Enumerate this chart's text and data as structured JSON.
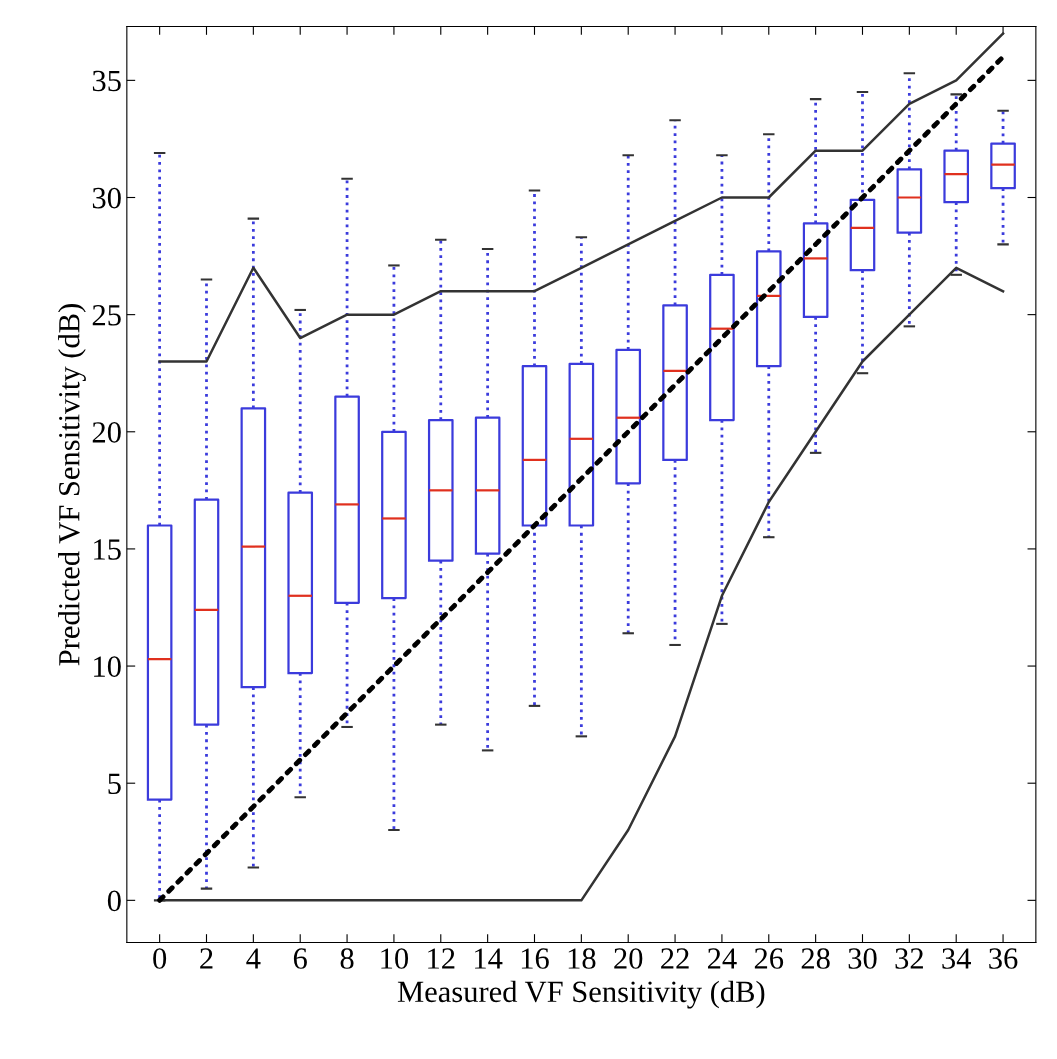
{
  "chart_data": {
    "type": "box",
    "xlabel": "Measured VF Sensitivity (dB)",
    "ylabel": "Predicted VF Sensitivity (dB)",
    "categories": [
      "0",
      "2",
      "4",
      "6",
      "8",
      "10",
      "12",
      "14",
      "16",
      "18",
      "20",
      "22",
      "24",
      "26",
      "28",
      "30",
      "32",
      "34",
      "36"
    ],
    "ylim": [
      -1.8,
      37.3
    ],
    "yticks": [
      0,
      5,
      10,
      15,
      20,
      25,
      30,
      35
    ],
    "grid": false,
    "legend": false,
    "series": [
      {
        "color": "#3b3bdc",
        "boxes": [
          {
            "low": 0,
            "q1": 4.3,
            "median": 10.3,
            "q3": 16.0,
            "high": 31.9
          },
          {
            "low": 0.5,
            "q1": 7.5,
            "median": 12.4,
            "q3": 17.1,
            "high": 26.5
          },
          {
            "low": 1.4,
            "q1": 9.1,
            "median": 15.1,
            "q3": 21.0,
            "high": 29.1
          },
          {
            "low": 4.4,
            "q1": 9.7,
            "median": 13.0,
            "q3": 17.4,
            "high": 25.2
          },
          {
            "low": 7.4,
            "q1": 12.7,
            "median": 16.9,
            "q3": 21.5,
            "high": 30.8
          },
          {
            "low": 3.0,
            "q1": 12.9,
            "median": 16.3,
            "q3": 20.0,
            "high": 27.1
          },
          {
            "low": 7.5,
            "q1": 14.5,
            "median": 17.5,
            "q3": 20.5,
            "high": 28.2
          },
          {
            "low": 6.4,
            "q1": 14.8,
            "median": 17.5,
            "q3": 20.6,
            "high": 27.8
          },
          {
            "low": 8.3,
            "q1": 16.0,
            "median": 18.8,
            "q3": 22.8,
            "high": 30.3
          },
          {
            "low": 7.0,
            "q1": 16.0,
            "median": 19.7,
            "q3": 22.9,
            "high": 28.3
          },
          {
            "low": 11.4,
            "q1": 17.8,
            "median": 20.6,
            "q3": 23.5,
            "high": 31.8
          },
          {
            "low": 10.9,
            "q1": 18.8,
            "median": 22.6,
            "q3": 25.4,
            "high": 33.3
          },
          {
            "low": 11.8,
            "q1": 20.5,
            "median": 24.4,
            "q3": 26.7,
            "high": 31.8
          },
          {
            "low": 15.5,
            "q1": 22.8,
            "median": 25.8,
            "q3": 27.7,
            "high": 32.7
          },
          {
            "low": 19.1,
            "q1": 24.9,
            "median": 27.4,
            "q3": 28.9,
            "high": 34.2
          },
          {
            "low": 22.5,
            "q1": 26.9,
            "median": 28.7,
            "q3": 29.9,
            "high": 34.5
          },
          {
            "low": 24.5,
            "q1": 28.5,
            "median": 30.0,
            "q3": 31.2,
            "high": 35.3
          },
          {
            "low": 26.7,
            "q1": 29.8,
            "median": 31.0,
            "q3": 32.0,
            "high": 34.4
          },
          {
            "low": 28.0,
            "q1": 30.4,
            "median": 31.4,
            "q3": 32.3,
            "high": 33.7
          }
        ]
      },
      {
        "type": "line",
        "color": "#333333",
        "line_style": "solid",
        "values": [
          23,
          23,
          27,
          24,
          25,
          25,
          26,
          26,
          26,
          27,
          28,
          29,
          30,
          30,
          32,
          32,
          34,
          35,
          37
        ]
      },
      {
        "type": "line",
        "color": "#333333",
        "line_style": "solid",
        "values": [
          0,
          0,
          0,
          0,
          0,
          0,
          0,
          0,
          0,
          0,
          3,
          7,
          13,
          17,
          20,
          23,
          25,
          27,
          26
        ]
      },
      {
        "type": "line",
        "color": "#000000",
        "line_style": "dotted",
        "values": [
          0,
          2,
          4,
          6,
          8,
          10,
          12,
          14,
          16,
          18,
          20,
          22,
          24,
          26,
          28,
          30,
          32,
          34,
          36
        ]
      }
    ]
  }
}
